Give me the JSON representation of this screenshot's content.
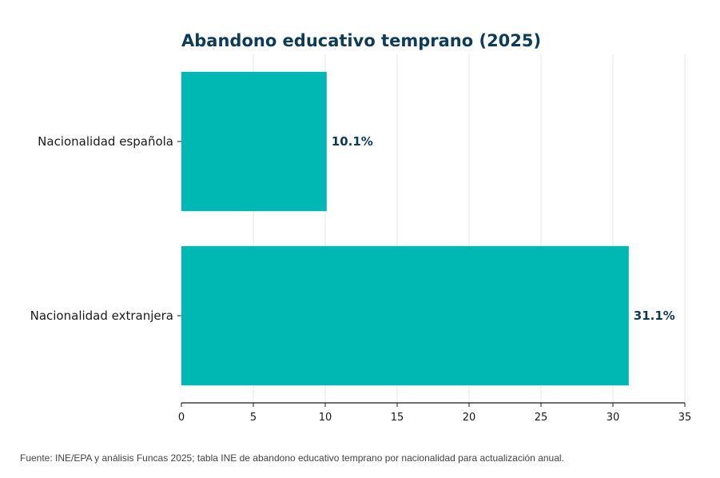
{
  "chart_data": {
    "type": "bar",
    "orientation": "horizontal",
    "title": "Abandono educativo temprano (2025)",
    "xlabel": "",
    "ylabel": "",
    "categories": [
      "Nacionalidad española",
      "Nacionalidad extranjera"
    ],
    "values": [
      10.1,
      31.1
    ],
    "data_labels": [
      "10.1%",
      "31.1%"
    ],
    "xlim": [
      0,
      35
    ],
    "xticks": [
      0,
      5,
      10,
      15,
      20,
      25,
      30,
      35
    ],
    "grid": "vertical",
    "legend": "none"
  },
  "footnote": "Fuente: INE/EPA y análisis Funcas 2025; tabla INE de abandono educativo temprano por nacionalidad para actualización anual.",
  "colors": {
    "bar": "#00b8b3",
    "title": "#0d3b5a",
    "data_label": "#0d3b5a",
    "grid": "#e6e6e6",
    "axis": "#1a1a1a"
  }
}
